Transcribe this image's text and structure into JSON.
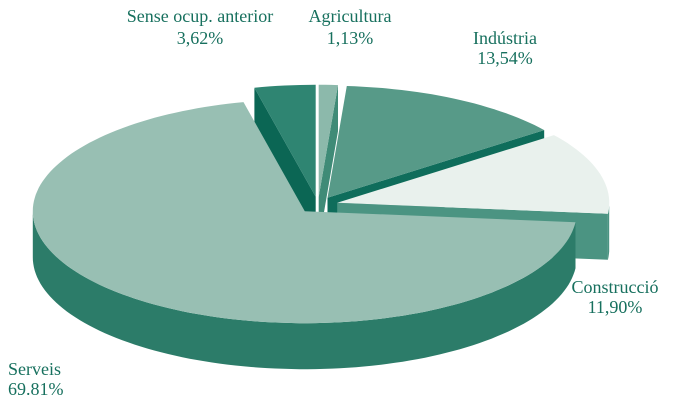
{
  "chart_data": {
    "type": "pie3d",
    "categories": [
      "Agricultura",
      "Indústria",
      "Construcció",
      "Serveis",
      "Sense ocup. anterior"
    ],
    "values": [
      1.13,
      13.54,
      11.9,
      69.81,
      3.62
    ],
    "value_labels": [
      "1,13%",
      "13,54%",
      "11,90%",
      "69.81%",
      "3,62%"
    ],
    "colors": [
      "#8cb9ab",
      "#579a88",
      "#e9f1ed",
      "#98bfb3",
      "#2f8572"
    ],
    "side_colors": [
      "#3f8b77",
      "#0f6d5b",
      "#4b9482",
      "#2c7c69",
      "#0b6654"
    ]
  }
}
